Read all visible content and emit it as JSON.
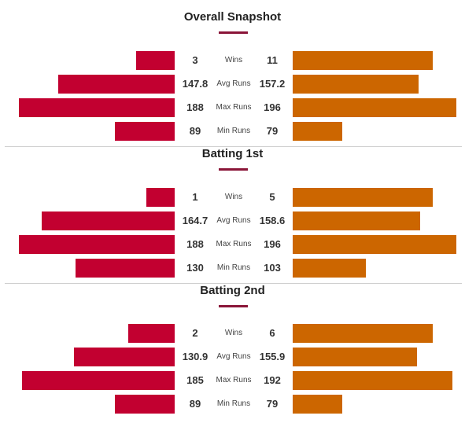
{
  "colors": {
    "left_bar": "#c20030",
    "right_bar": "#cc6600",
    "underline": "#8a1538"
  },
  "sections": [
    {
      "title": "Overall Snapshot",
      "rows": [
        {
          "metric": "Wins",
          "left": "3",
          "right": "11",
          "left_value": 3,
          "right_value": 11
        },
        {
          "metric": "Avg Runs",
          "left": "147.8",
          "right": "157.2",
          "left_value": 147.8,
          "right_value": 157.2
        },
        {
          "metric": "Max Runs",
          "left": "188",
          "right": "196",
          "left_value": 188,
          "right_value": 196
        },
        {
          "metric": "Min Runs",
          "left": "89",
          "right": "79",
          "left_value": 89,
          "right_value": 79
        }
      ]
    },
    {
      "title": "Batting 1st",
      "rows": [
        {
          "metric": "Wins",
          "left": "1",
          "right": "5",
          "left_value": 1,
          "right_value": 5
        },
        {
          "metric": "Avg Runs",
          "left": "164.7",
          "right": "158.6",
          "left_value": 164.7,
          "right_value": 158.6
        },
        {
          "metric": "Max Runs",
          "left": "188",
          "right": "196",
          "left_value": 188,
          "right_value": 196
        },
        {
          "metric": "Min Runs",
          "left": "130",
          "right": "103",
          "left_value": 130,
          "right_value": 103
        }
      ]
    },
    {
      "title": "Batting 2nd",
      "rows": [
        {
          "metric": "Wins",
          "left": "2",
          "right": "6",
          "left_value": 2,
          "right_value": 6
        },
        {
          "metric": "Avg Runs",
          "left": "130.9",
          "right": "155.9",
          "left_value": 130.9,
          "right_value": 155.9
        },
        {
          "metric": "Max Runs",
          "left": "185",
          "right": "192",
          "left_value": 185,
          "right_value": 192
        },
        {
          "metric": "Min Runs",
          "left": "89",
          "right": "79",
          "left_value": 89,
          "right_value": 79
        }
      ]
    }
  ]
}
